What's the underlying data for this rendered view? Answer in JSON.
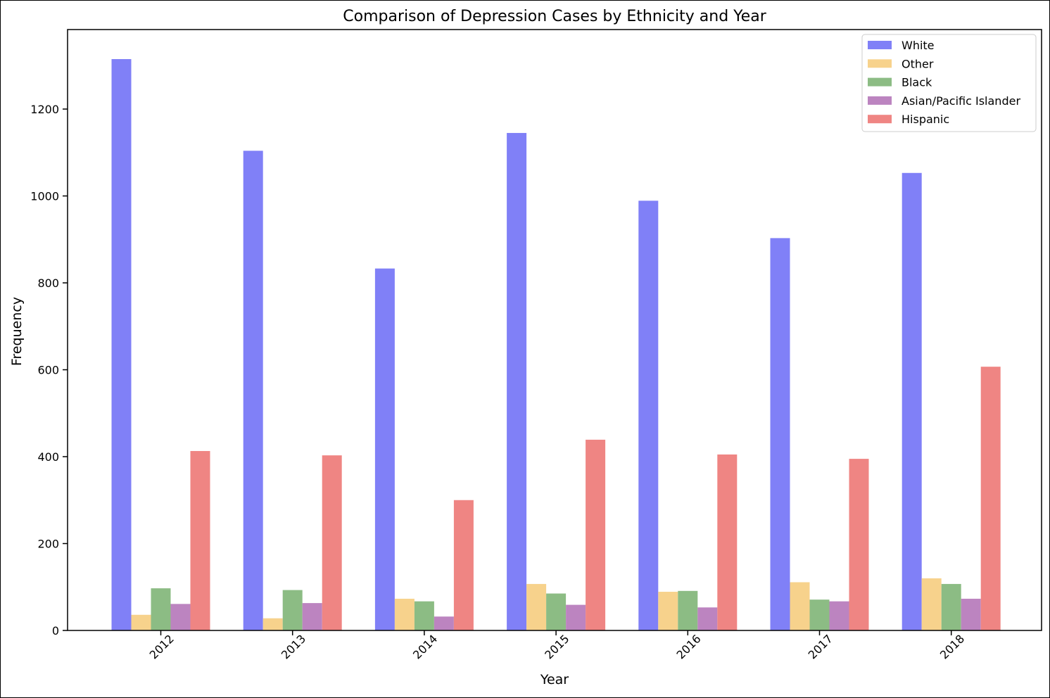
{
  "chart_data": {
    "type": "bar",
    "title": "Comparison of Depression Cases by Ethnicity and Year",
    "xlabel": "Year",
    "ylabel": "Frequency",
    "categories": [
      "2012",
      "2013",
      "2014",
      "2015",
      "2016",
      "2017",
      "2018"
    ],
    "series": [
      {
        "name": "White",
        "color": "#8080f7",
        "values": [
          1315,
          1104,
          833,
          1145,
          989,
          903,
          1053
        ]
      },
      {
        "name": "Other",
        "color": "#f7d28c",
        "values": [
          36,
          28,
          73,
          107,
          89,
          111,
          120
        ]
      },
      {
        "name": "Black",
        "color": "#8cbc84",
        "values": [
          97,
          93,
          67,
          85,
          91,
          71,
          107
        ]
      },
      {
        "name": "Asian/Pacific Islander",
        "color": "#bc84c0",
        "values": [
          61,
          63,
          32,
          59,
          53,
          67,
          73
        ]
      },
      {
        "name": "Hispanic",
        "color": "#ef8583",
        "values": [
          413,
          403,
          300,
          439,
          405,
          395,
          607
        ]
      }
    ],
    "ylim": [
      0,
      1383
    ],
    "yticks": [
      0,
      200,
      400,
      600,
      800,
      1000,
      1200
    ],
    "legend_position": "top-right",
    "grid": false
  }
}
